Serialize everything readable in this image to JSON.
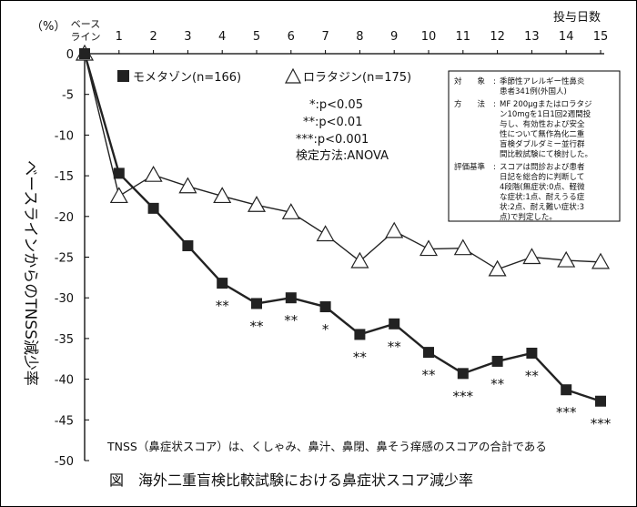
{
  "caption": "図　海外二重盲検比較試験における鼻症状スコア減少率",
  "note": "TNSS（鼻症状スコア）は、くしゃみ、鼻汁、鼻閉、鼻そう痒感のスコアの合計である",
  "y_unit": "（%）",
  "baseline_label_1": "ベース",
  "baseline_label_2": "ライン",
  "stats_lines": [
    "*:p<0.05",
    "**:p<0.01",
    "***:p<0.001",
    "検定方法:ANOVA"
  ],
  "info_box": [
    {
      "k": "対　　象",
      "v": [
        "季節性アレルギー性鼻炎",
        "患者341例(外国人)"
      ]
    },
    {
      "k": "方　　法",
      "v": [
        "MF 200μgまたはロラタジ",
        "ン10mgを1日1回2週間投",
        "与し、有効性および安全",
        "性について無作為化二重",
        "盲検ダブルダミー並行群",
        "間比較試験にて検討した。"
      ]
    },
    {
      "k": "評価基準",
      "v": [
        "スコアは問診および患者",
        "日記を総合的に判断して",
        "4段階(無症状:0点、軽微",
        "な症状:1点、耐えうる症",
        "状:2点、耐え難い症状:3",
        "点)で判定した。"
      ]
    }
  ],
  "chart_data": {
    "type": "line",
    "xlabel": "投与日数",
    "ylabel": "ベースラインからのTNSS減少率",
    "x": [
      0,
      1,
      2,
      3,
      4,
      5,
      6,
      7,
      8,
      9,
      10,
      11,
      12,
      13,
      14,
      15
    ],
    "x_tick_labels": [
      "",
      "1",
      "2",
      "3",
      "4",
      "5",
      "6",
      "7",
      "8",
      "9",
      "10",
      "11",
      "12",
      "13",
      "14",
      "15"
    ],
    "ylim": [
      -50,
      0
    ],
    "y_ticks": [
      0,
      -5,
      -10,
      -15,
      -20,
      -25,
      -30,
      -35,
      -40,
      -45,
      -50
    ],
    "grid": false,
    "legend_position": "top-left",
    "series": [
      {
        "name": "モメタゾン(n=166)",
        "marker": "square",
        "color": "#222222",
        "values": [
          0,
          -14.7,
          -19.0,
          -23.6,
          -28.2,
          -30.7,
          -30.0,
          -31.1,
          -34.5,
          -33.2,
          -36.7,
          -39.3,
          -37.8,
          -36.8,
          -41.3,
          -42.7
        ],
        "significance": [
          "",
          "",
          "",
          "",
          "**",
          "**",
          "**",
          "*",
          "**",
          "**",
          "**",
          "***",
          "**",
          "**",
          "***",
          "***"
        ]
      },
      {
        "name": "ロラタジン(n=175)",
        "marker": "triangle",
        "color": "#222222",
        "values": [
          0,
          -17.5,
          -14.9,
          -16.3,
          -17.5,
          -18.6,
          -19.5,
          -22.2,
          -25.5,
          -21.8,
          -24.0,
          -23.9,
          -26.5,
          -25.0,
          -25.4,
          -25.6
        ]
      }
    ]
  }
}
